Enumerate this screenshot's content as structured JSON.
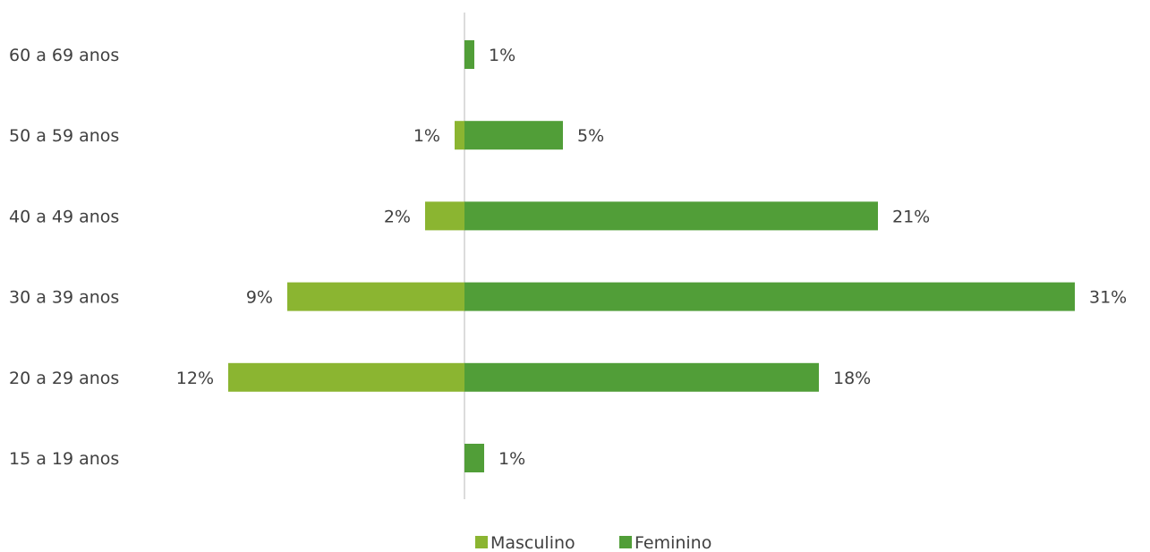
{
  "chart_data": {
    "type": "bar",
    "orientation": "horizontal-diverging",
    "categories": [
      "60 a 69 anos",
      "50 a 59 anos",
      "40 a 49 anos",
      "30 a 39 anos",
      "20 a 29 anos",
      "15 a 19 anos"
    ],
    "series": [
      {
        "name": "Masculino",
        "color": "#8BB531",
        "values": [
          0,
          0.5,
          2,
          9,
          12,
          0
        ],
        "labels": [
          "",
          "1%",
          "2%",
          "9%",
          "12%",
          ""
        ]
      },
      {
        "name": "Feminino",
        "color": "#519E38",
        "values": [
          0.5,
          5,
          21,
          31,
          18,
          1
        ],
        "labels": [
          "1%",
          "5%",
          "21%",
          "31%",
          "18%",
          "1%"
        ]
      }
    ],
    "value_unit": "%",
    "legend_position": "bottom",
    "grid": false,
    "axis_color": "#D0D0D0"
  }
}
